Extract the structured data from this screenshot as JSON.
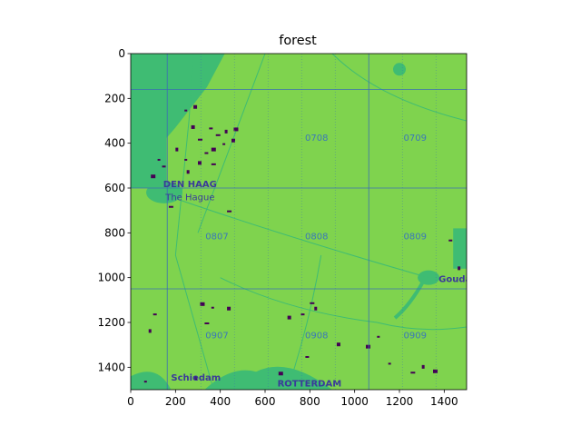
{
  "chart_data": {
    "type": "heatmap",
    "title": "forest",
    "xlabel": "",
    "ylabel": "",
    "xlim": [
      0,
      1500
    ],
    "ylim": [
      1500,
      0
    ],
    "y_inverted": true,
    "xticks": [
      0,
      200,
      400,
      600,
      800,
      1000,
      1200,
      1400
    ],
    "yticks": [
      0,
      200,
      400,
      600,
      800,
      1000,
      1200,
      1400
    ],
    "colormap": "viridis",
    "colors": {
      "land": "#7fd34e",
      "water": "#3fbc73",
      "forest": "#440154",
      "label": "#3b78b8",
      "city": "#3a3a9a",
      "grid": "#3b6fb3"
    },
    "grid_lines": {
      "x": [
        163,
        1063
      ],
      "y": [
        160,
        600,
        1050
      ]
    },
    "map_labels": [
      {
        "text": "0708",
        "x": 830,
        "y": 390
      },
      {
        "text": "0709",
        "x": 1270,
        "y": 390
      },
      {
        "text": "0807",
        "x": 385,
        "y": 830
      },
      {
        "text": "0808",
        "x": 830,
        "y": 830
      },
      {
        "text": "0809",
        "x": 1270,
        "y": 830
      },
      {
        "text": "0907",
        "x": 385,
        "y": 1270
      },
      {
        "text": "0908",
        "x": 830,
        "y": 1270
      },
      {
        "text": "0909",
        "x": 1270,
        "y": 1270
      }
    ],
    "place_names": [
      {
        "text": "DEN HAAG",
        "x": 145,
        "y": 595,
        "bold": true
      },
      {
        "text": "The Hague",
        "x": 155,
        "y": 655,
        "bold": false
      },
      {
        "text": "Gouda",
        "x": 1375,
        "y": 1020,
        "bold": true
      },
      {
        "text": "Schiedam",
        "x": 180,
        "y": 1460,
        "bold": true
      },
      {
        "text": "ROTTERDAM",
        "x": 655,
        "y": 1485,
        "bold": true
      }
    ]
  }
}
